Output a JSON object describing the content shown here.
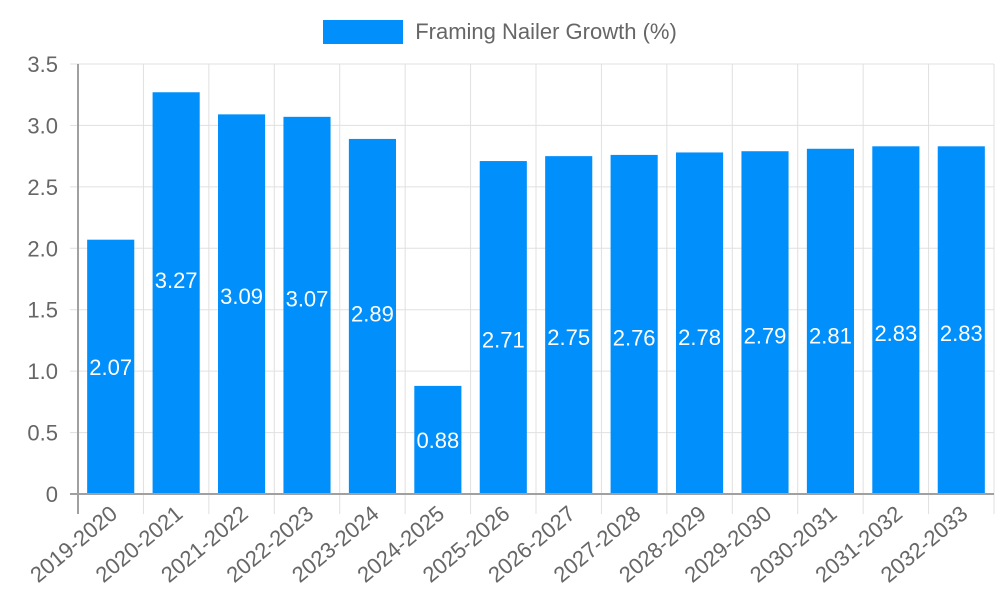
{
  "legend": {
    "label": "Framing Nailer Growth (%)",
    "color": "#008ffb"
  },
  "colors": {
    "bar": "#008ffb",
    "grid": "#e0e0e0",
    "axis": "#a0a0a0",
    "tick_text": "#666666",
    "bar_label": "#ffffff"
  },
  "chart_data": {
    "type": "bar",
    "title": "",
    "xlabel": "",
    "ylabel": "",
    "legend": [
      "Framing Nailer Growth (%)"
    ],
    "legend_position": "top",
    "grid": true,
    "ylim": [
      0,
      3.5
    ],
    "y_ticks": [
      "0",
      "0.5",
      "1.0",
      "1.5",
      "2.0",
      "2.5",
      "3.0",
      "3.5"
    ],
    "categories": [
      "2019-2020",
      "2020-2021",
      "2021-2022",
      "2022-2023",
      "2023-2024",
      "2024-2025",
      "2025-2026",
      "2026-2027",
      "2027-2028",
      "2028-2029",
      "2029-2030",
      "2030-2031",
      "2031-2032",
      "2032-2033"
    ],
    "series": [
      {
        "name": "Framing Nailer Growth (%)",
        "values": [
          2.07,
          3.27,
          3.09,
          3.07,
          2.89,
          0.88,
          2.71,
          2.75,
          2.76,
          2.78,
          2.79,
          2.81,
          2.83,
          2.83
        ],
        "labels": [
          "2.07",
          "3.27",
          "3.09",
          "3.07",
          "2.89",
          "0.88",
          "2.71",
          "2.75",
          "2.76",
          "2.78",
          "2.79",
          "2.81",
          "2.83",
          "2.83"
        ]
      }
    ]
  }
}
